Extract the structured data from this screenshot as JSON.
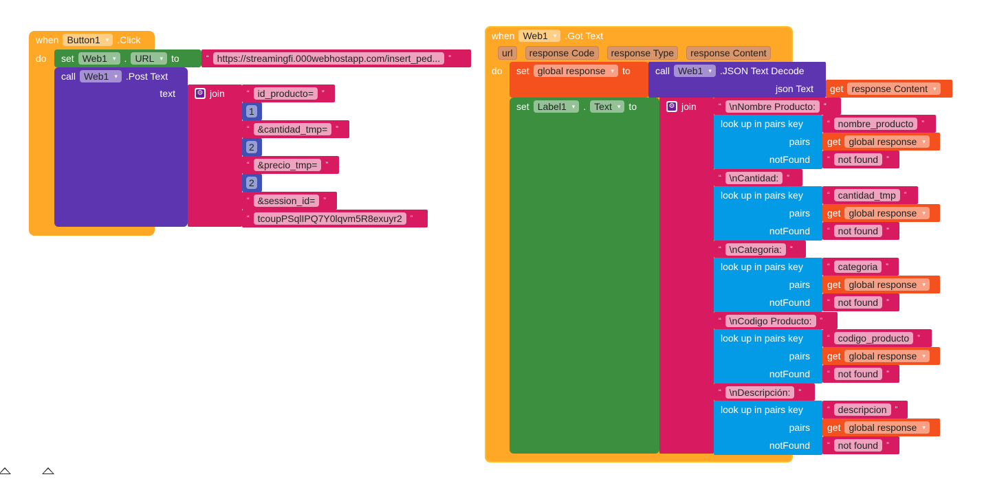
{
  "colors": {
    "event": "#ffa726",
    "setter": "#3d8f40",
    "method": "#5e35b1",
    "text": "#d81b60",
    "number": "#3f51b5",
    "lookup": "#039be5",
    "variable": "#f4511e"
  },
  "event1": {
    "when": "when",
    "component": "Button1",
    "event": ".Click",
    "do": "do",
    "set_url": {
      "set": "set",
      "component": "Web1",
      "dot": ".",
      "property": "URL",
      "to": "to",
      "value": "https://streamingfi.000webhostapp.com/insert_ped..."
    },
    "post": {
      "call": "call",
      "component": "Web1",
      "method": ".Post Text",
      "arg": "text",
      "join": "join",
      "items": [
        {
          "type": "text",
          "value": "id_producto="
        },
        {
          "type": "number",
          "value": "1"
        },
        {
          "type": "text",
          "value": "&cantidad_tmp="
        },
        {
          "type": "number",
          "value": "2"
        },
        {
          "type": "text",
          "value": "&precio_tmp="
        },
        {
          "type": "number",
          "value": "2"
        },
        {
          "type": "text",
          "value": "&session_id="
        },
        {
          "type": "text",
          "value": "tcoupPSqlIPQ7Y0lqvm5R8exuyr2"
        }
      ]
    }
  },
  "event2": {
    "when": "when",
    "component": "Web1",
    "event": ".Got Text",
    "params": [
      "url",
      "response Code",
      "response Type",
      "response Content"
    ],
    "do": "do",
    "set_global": {
      "set": "set",
      "variable": "global response",
      "to": "to",
      "call": "call",
      "component": "Web1",
      "method": ".JSON Text Decode",
      "arg": "json Text",
      "get": "get",
      "get_var": "response Content"
    },
    "set_label": {
      "set": "set",
      "component": "Label1",
      "dot": ".",
      "property": "Text",
      "to": "to",
      "join": "join",
      "groups": [
        {
          "label": "\\nNombre Producto:",
          "lookup": "look up in pairs  key",
          "key": "nombre_producto",
          "pairs": "pairs",
          "get": "get",
          "pairs_var": "global response",
          "notfound_label": "notFound",
          "notfound": "not found"
        },
        {
          "label": "\\nCantidad:",
          "lookup": "look up in pairs  key",
          "key": "cantidad_tmp",
          "pairs": "pairs",
          "get": "get",
          "pairs_var": "global response",
          "notfound_label": "notFound",
          "notfound": "not found"
        },
        {
          "label": "\\nCategoria:",
          "lookup": "look up in pairs  key",
          "key": "categoria",
          "pairs": "pairs",
          "get": "get",
          "pairs_var": "global response",
          "notfound_label": "notFound",
          "notfound": "not found"
        },
        {
          "label": "\\nCodigo Producto:",
          "lookup": "look up in pairs  key",
          "key": "codigo_producto",
          "pairs": "pairs",
          "get": "get",
          "pairs_var": "global response",
          "notfound_label": "notFound",
          "notfound": "not found"
        },
        {
          "label": "\\nDescripción:",
          "lookup": "look up in pairs  key",
          "key": "descripcion",
          "pairs": "pairs",
          "get": "get",
          "pairs_var": "global response",
          "notfound_label": "notFound",
          "notfound": "not found"
        }
      ]
    }
  }
}
